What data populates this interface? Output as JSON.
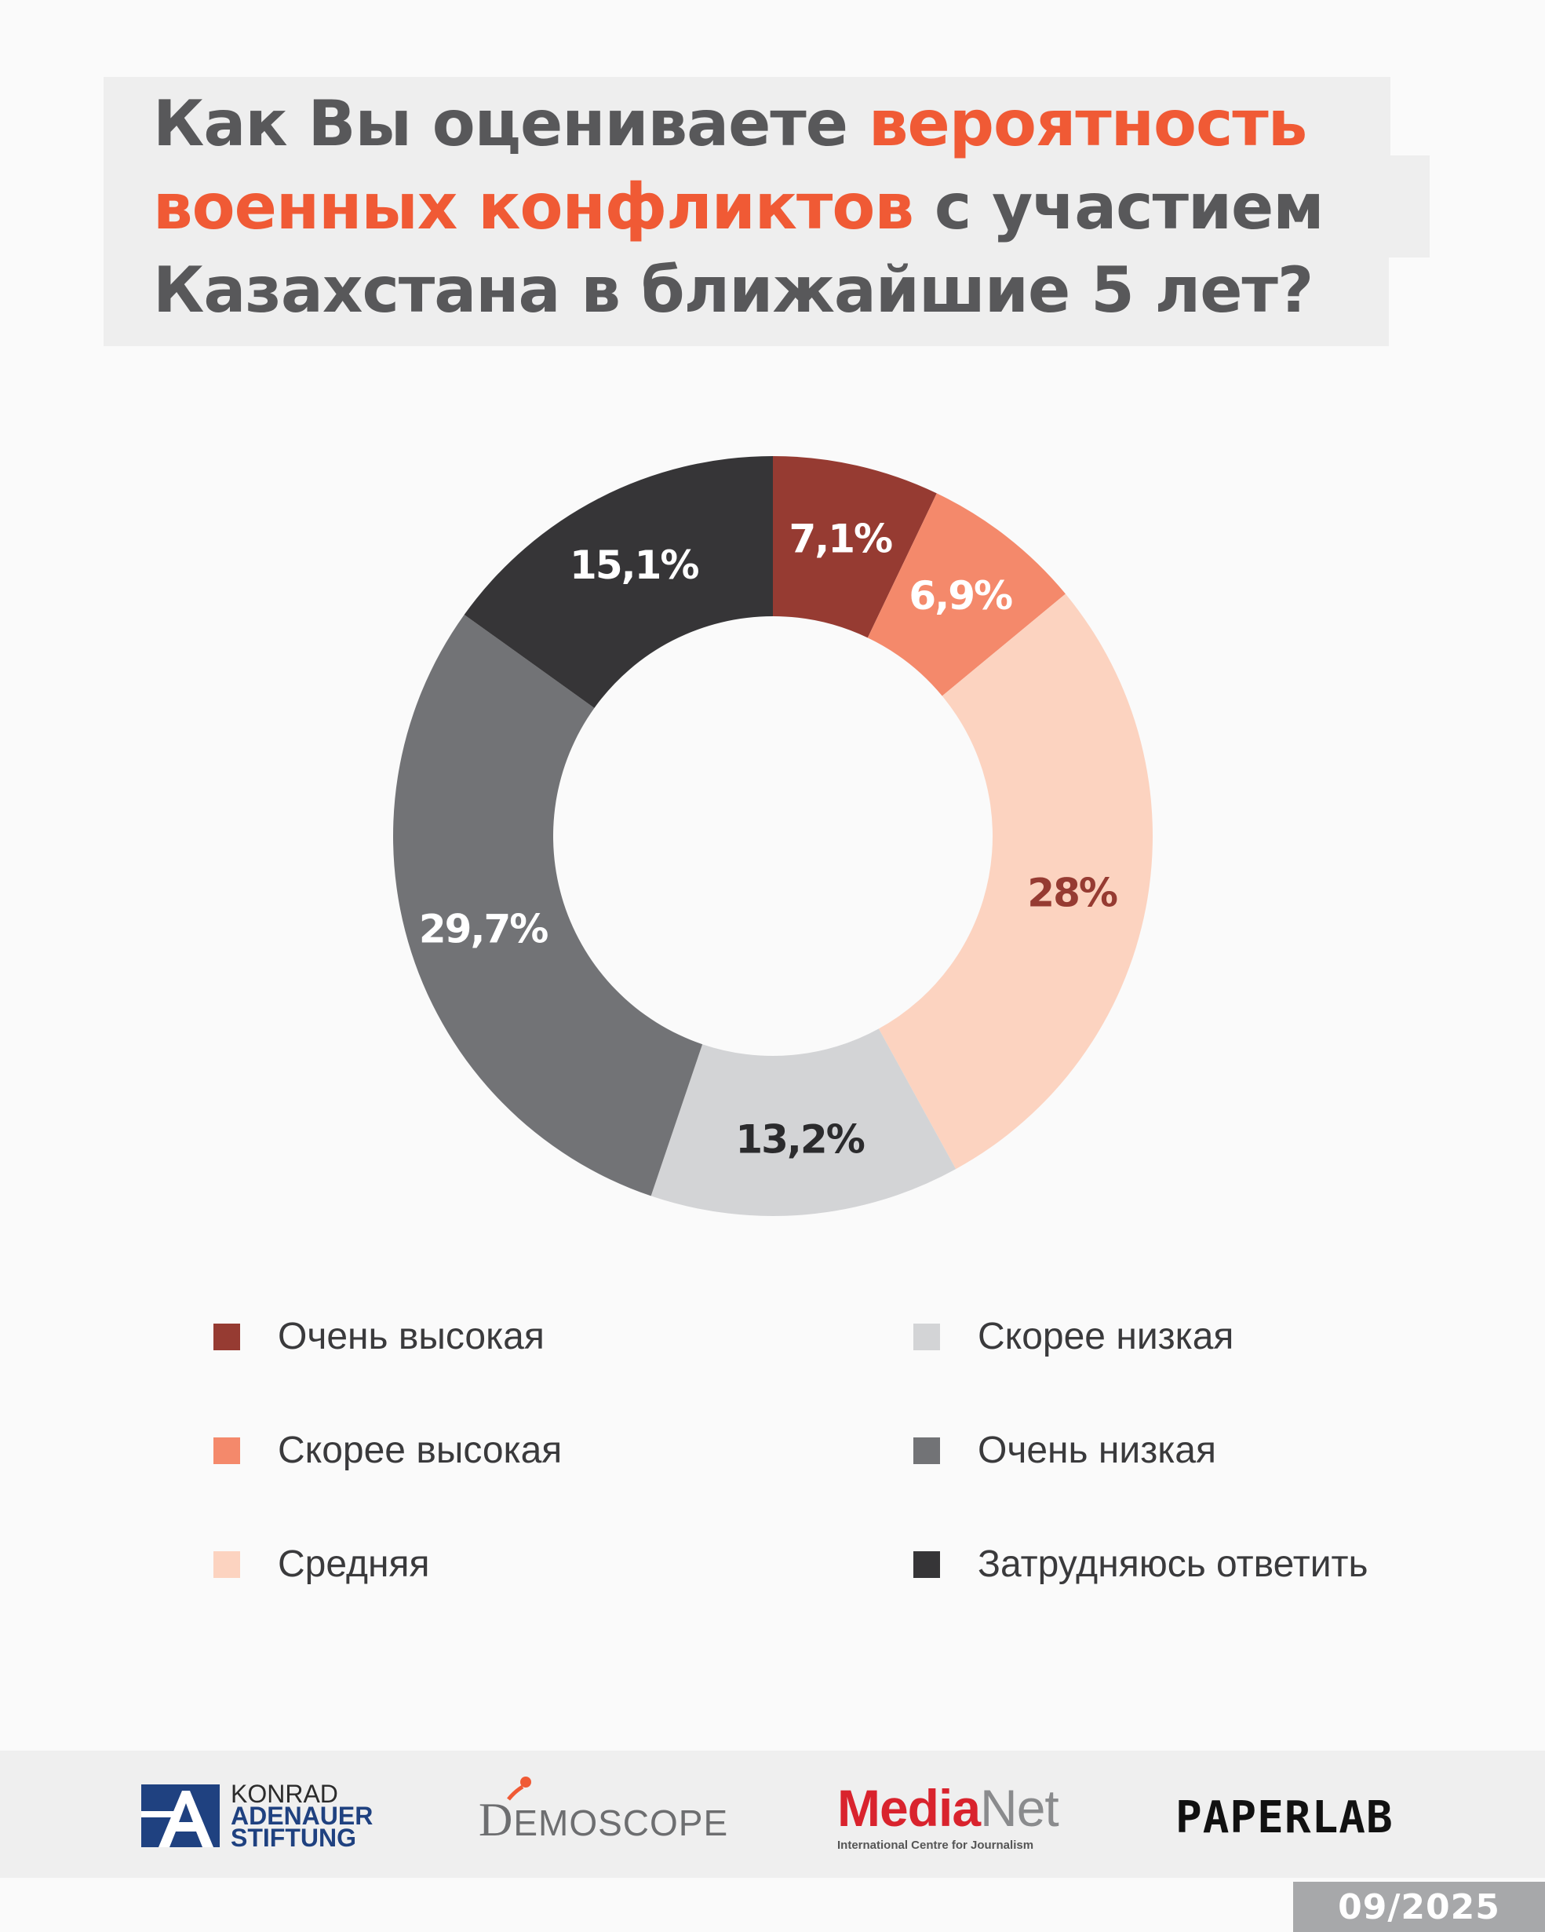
{
  "title": {
    "line1_a": "Как Вы оцениваете ",
    "line1_b": "вероятность",
    "line2_a": "военных конфликтов",
    "line2_b": " с участием",
    "line3": "Казахстана в ближайшие 5 лет?"
  },
  "chart_data": {
    "type": "pie",
    "donut": true,
    "title": "Как Вы оцениваете вероятность военных конфликтов с участием Казахстана в ближайшие 5 лет?",
    "unit": "%",
    "slices": [
      {
        "label": "Очень высокая",
        "value": 7.1,
        "display": "7,1%",
        "color": "#963b32",
        "label_color": "#ffffff"
      },
      {
        "label": "Скорее высокая",
        "value": 6.9,
        "display": "6,9%",
        "color": "#f4896b",
        "label_color": "#ffffff"
      },
      {
        "label": "Средняя",
        "value": 28.0,
        "display": "28%",
        "color": "#fcd3c0",
        "label_color": "#963b32"
      },
      {
        "label": "Скорее низкая",
        "value": 13.2,
        "display": "13,2%",
        "color": "#d3d4d6",
        "label_color": "#2b2b2d"
      },
      {
        "label": "Очень низкая",
        "value": 29.7,
        "display": "29,7%",
        "color": "#727376",
        "label_color": "#ffffff"
      },
      {
        "label": "Затрудняюсь ответить",
        "value": 15.1,
        "display": "15,1%",
        "color": "#363537",
        "label_color": "#ffffff"
      }
    ],
    "legend_position": "bottom"
  },
  "footer": {
    "kas": {
      "line1": "KONRAD",
      "line2": "ADENAUER",
      "line3": "STIFTUNG"
    },
    "demoscope": {
      "d": "D",
      "rest": "EMOSCOPE"
    },
    "medianet": {
      "media": "Media",
      "net": "Net",
      "sub": "International Centre for Journalism"
    },
    "paperlab": "PAPERLAB",
    "date": "09/2025"
  },
  "colors": {
    "accent": "#f05a35",
    "title_text": "#58585a",
    "kas_blue": "#1f4180",
    "medianet_red": "#d9232d"
  }
}
